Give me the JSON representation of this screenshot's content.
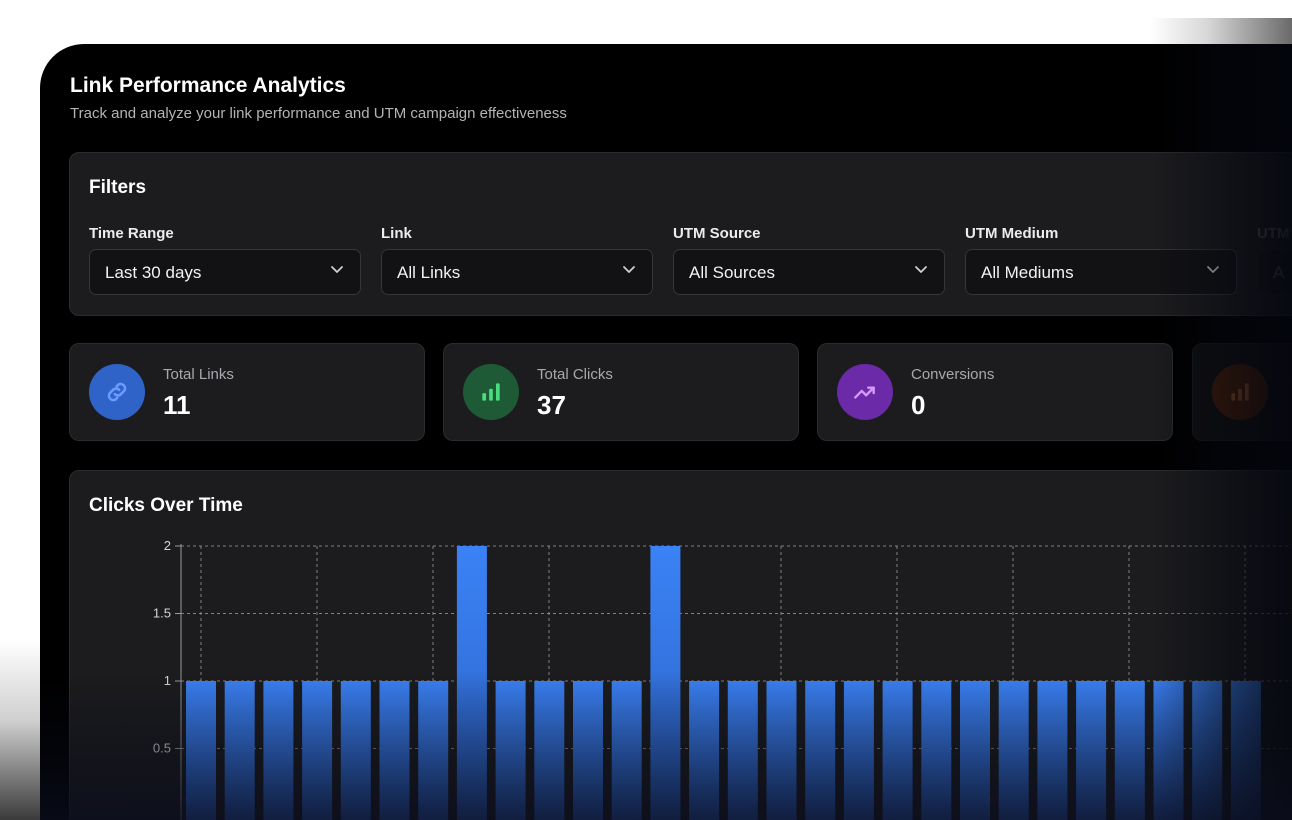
{
  "header": {
    "title": "Link Performance Analytics",
    "subtitle": "Track and analyze your link performance and UTM campaign effectiveness"
  },
  "filters": {
    "title": "Filters",
    "items": [
      {
        "label": "Time Range",
        "value": "Last 30 days"
      },
      {
        "label": "Link",
        "value": "All Links"
      },
      {
        "label": "UTM Source",
        "value": "All Sources"
      },
      {
        "label": "UTM Medium",
        "value": "All Mediums"
      },
      {
        "label": "UTM",
        "value": "A"
      }
    ]
  },
  "stats": [
    {
      "label": "Total Links",
      "value": "11",
      "icon": "link-icon",
      "color": "#2f63c8",
      "icon_color": "#6b9bff"
    },
    {
      "label": "Total Clicks",
      "value": "37",
      "icon": "bar-chart-icon",
      "color": "#1d5a35",
      "icon_color": "#4ade80"
    },
    {
      "label": "Conversions",
      "value": "0",
      "icon": "trending-up-icon",
      "color": "#6b2aa8",
      "icon_color": "#d39bff"
    },
    {
      "label": "",
      "value": "",
      "icon": "bar-chart-icon",
      "color": "#7a3410",
      "icon_color": "#ff8a4c"
    }
  ],
  "colors": {
    "bar": "#3b82f6",
    "background": "#000000",
    "card": "#1c1c1e"
  },
  "chart_data": {
    "type": "bar",
    "title": "Clicks Over Time",
    "xlabel": "",
    "ylabel": "",
    "ylim": [
      0,
      2
    ],
    "y_ticks": [
      "2",
      "1.5",
      "1",
      "0.5"
    ],
    "grid": true,
    "values": [
      1,
      1,
      1,
      1,
      1,
      1,
      1,
      2,
      1,
      1,
      1,
      1,
      2,
      1,
      1,
      1,
      1,
      1,
      1,
      1,
      1,
      1,
      1,
      1,
      1,
      1,
      1,
      1
    ]
  }
}
